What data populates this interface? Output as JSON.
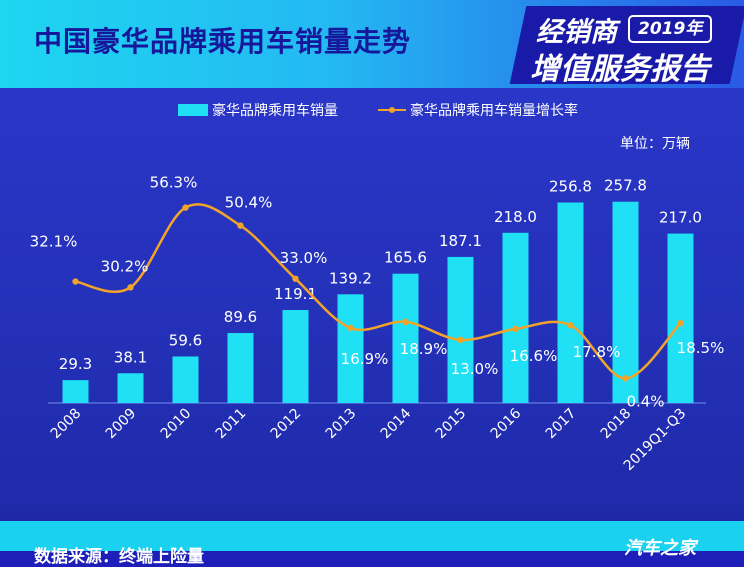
{
  "header": {
    "title": "中国豪华品牌乘用车销量走势",
    "brand_line1": "经销商",
    "brand_year": "2019年",
    "brand_line2": "增值服务报告"
  },
  "footer": {
    "source": "数据来源：终端上险量",
    "logo": "汽车之家"
  },
  "colors": {
    "bar": "#1fe0f5",
    "line": "#f2a42a"
  },
  "chart_data": {
    "type": "bar",
    "title": "",
    "unit": "单位：万辆",
    "categories": [
      "2008",
      "2009",
      "2010",
      "2011",
      "2012",
      "2013",
      "2014",
      "2015",
      "2016",
      "2017",
      "2018",
      "2019Q1-Q3"
    ],
    "series": [
      {
        "name": "豪华品牌乘用车销量",
        "type": "bar",
        "values": [
          29.3,
          38.1,
          59.6,
          89.6,
          119.1,
          139.2,
          165.6,
          187.1,
          218.0,
          256.8,
          257.8,
          217.0
        ],
        "labels": [
          "29.3",
          "38.1",
          "59.6",
          "89.6",
          "119.1",
          "139.2",
          "165.6",
          "187.1",
          "218.0",
          "256.8",
          "257.8",
          "217.0"
        ]
      },
      {
        "name": "豪华品牌乘用车销量增长率",
        "type": "line",
        "values": [
          32.1,
          30.2,
          56.3,
          50.4,
          33.0,
          16.9,
          18.9,
          13.0,
          16.6,
          17.8,
          0.4,
          18.5
        ],
        "labels": [
          "32.1%",
          "30.2%",
          "56.3%",
          "50.4%",
          "33.0%",
          "16.9%",
          "18.9%",
          "13.0%",
          "16.6%",
          "17.8%",
          "0.4%",
          "18.5%"
        ]
      }
    ],
    "legend_position": "top-center",
    "grid": false
  }
}
